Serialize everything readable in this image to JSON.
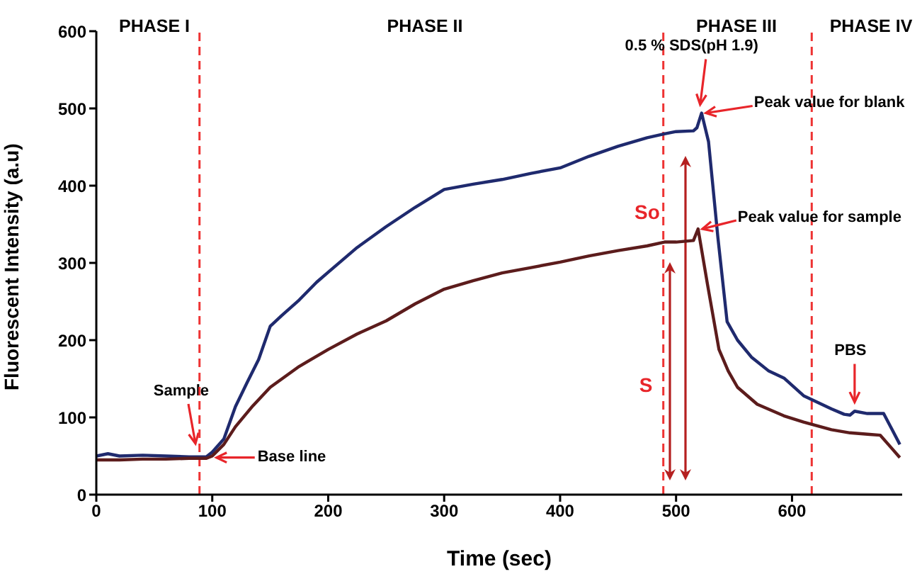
{
  "chart_data": {
    "type": "line",
    "xlabel": "Time (sec)",
    "ylabel": "Fluorescent Intensity (a.u)",
    "xlim": [
      0,
      695
    ],
    "xticks": [
      0,
      100,
      200,
      300,
      400,
      500,
      600
    ],
    "ylim": [
      0,
      600
    ],
    "yticks": [
      0,
      100,
      200,
      300,
      400,
      500,
      600
    ],
    "grid": false,
    "legend": false,
    "marker": "none",
    "line_style": "solid",
    "series": [
      {
        "color": "#1f2a6e",
        "x": [
          0,
          10,
          20,
          40,
          60,
          80,
          95,
          100,
          110,
          120,
          130,
          140,
          150,
          160,
          175,
          190,
          200,
          225,
          250,
          275,
          300,
          325,
          350,
          375,
          400,
          425,
          450,
          475,
          490,
          500,
          515,
          518,
          522,
          528,
          536,
          544,
          553,
          565,
          580,
          593,
          610,
          634,
          645,
          650,
          654,
          665,
          679,
          686,
          693
        ],
        "values": [
          50,
          53,
          50,
          51,
          50,
          49,
          49,
          55,
          72,
          114,
          145,
          175,
          218,
          232,
          252,
          275,
          288,
          320,
          347,
          372,
          395,
          402,
          408,
          416,
          423,
          438,
          451,
          462,
          467,
          470,
          471,
          475,
          494,
          457,
          334,
          224,
          200,
          178,
          160,
          151,
          128,
          111,
          104,
          103,
          108,
          105,
          105,
          85,
          65
        ]
      },
      {
        "color": "#5c1c1c",
        "x": [
          0,
          20,
          40,
          60,
          80,
          95,
          100,
          110,
          120,
          135,
          150,
          175,
          200,
          225,
          250,
          275,
          300,
          325,
          350,
          375,
          400,
          425,
          450,
          475,
          490,
          500,
          515,
          519,
          527,
          537,
          545,
          553,
          570,
          593,
          610,
          634,
          650,
          667,
          676,
          686,
          693
        ],
        "values": [
          45,
          45,
          46,
          46,
          47,
          47,
          50,
          65,
          88,
          115,
          139,
          166,
          188,
          208,
          225,
          247,
          266,
          277,
          287,
          294,
          301,
          309,
          316,
          322,
          327,
          327,
          329,
          344,
          273,
          188,
          160,
          139,
          117,
          102,
          94,
          84,
          80,
          78,
          77,
          60,
          48
        ]
      }
    ],
    "ref_lines": [
      {
        "axis": "x",
        "value": 89,
        "color": "#ee3333",
        "line_style": "dashed"
      },
      {
        "axis": "x",
        "value": 489,
        "color": "#ee3333",
        "line_style": "dashed"
      },
      {
        "axis": "x",
        "value": 617,
        "color": "#ee3333",
        "line_style": "dashed"
      }
    ],
    "annotations": [
      "PHASE I",
      "PHASE II",
      "PHASE III",
      "PHASE IV",
      {
        "text": "0.5 % SDS(pH 1.9)",
        "x": 522,
        "y": 494
      },
      {
        "text": "Peak value for blank",
        "x": 522,
        "y": 494
      },
      {
        "text": "Peak value for sample",
        "x": 519,
        "y": 344
      },
      "Sample",
      {
        "text": "Base line",
        "x": 100,
        "y": 48
      },
      {
        "text": "PBS",
        "x": 654,
        "y": 105
      },
      "So",
      "S"
    ]
  }
}
